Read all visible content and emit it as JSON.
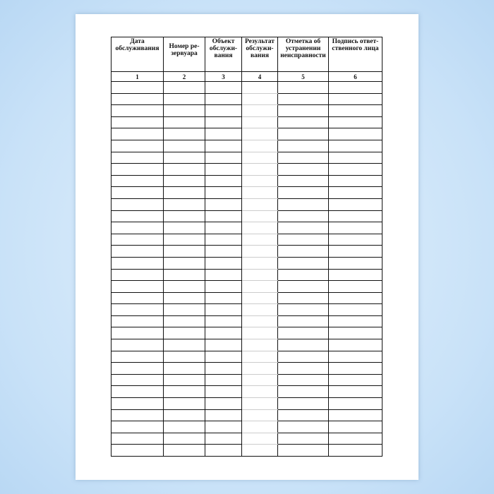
{
  "table": {
    "headers": [
      "Дата обслуживания",
      "Номер ре-зервуара",
      "Объект обслужи-вания",
      "Результат обслужи-вания",
      "Отметка об устранении неисправности",
      "Подпись ответ-ственного лица"
    ],
    "column_numbers": [
      "1",
      "2",
      "3",
      "4",
      "5",
      "6"
    ],
    "empty_rows": 32
  }
}
